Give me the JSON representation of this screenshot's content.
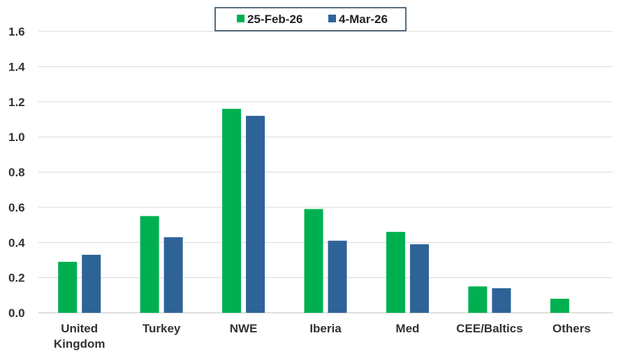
{
  "chart_data": {
    "type": "bar",
    "categories": [
      [
        "United",
        "Kingdom"
      ],
      [
        "Turkey"
      ],
      [
        "NWE"
      ],
      [
        "Iberia"
      ],
      [
        "Med"
      ],
      [
        "CEE/Baltics"
      ],
      [
        "Others"
      ]
    ],
    "series": [
      {
        "name": "25-Feb-26",
        "color": "#00b050",
        "values": [
          0.29,
          0.55,
          1.16,
          0.59,
          0.46,
          0.15,
          0.08
        ]
      },
      {
        "name": "4-Mar-26",
        "color": "#2e6398",
        "values": [
          0.33,
          0.43,
          1.12,
          0.41,
          0.39,
          0.14,
          null
        ]
      }
    ],
    "yticks": [
      "0.0",
      "0.2",
      "0.4",
      "0.6",
      "0.8",
      "1.0",
      "1.2",
      "1.4",
      "1.6"
    ],
    "ylim": [
      0,
      1.6
    ],
    "grid": true,
    "legend_position": "top-center"
  }
}
